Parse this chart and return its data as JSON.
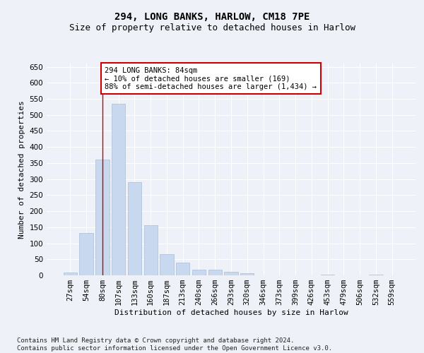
{
  "title": "294, LONG BANKS, HARLOW, CM18 7PE",
  "subtitle": "Size of property relative to detached houses in Harlow",
  "xlabel": "Distribution of detached houses by size in Harlow",
  "ylabel": "Number of detached properties",
  "categories": [
    "27sqm",
    "54sqm",
    "80sqm",
    "107sqm",
    "133sqm",
    "160sqm",
    "187sqm",
    "213sqm",
    "240sqm",
    "266sqm",
    "293sqm",
    "320sqm",
    "346sqm",
    "373sqm",
    "399sqm",
    "426sqm",
    "453sqm",
    "479sqm",
    "506sqm",
    "532sqm",
    "559sqm"
  ],
  "values": [
    8,
    133,
    360,
    535,
    290,
    157,
    65,
    40,
    18,
    18,
    12,
    7,
    0,
    0,
    0,
    0,
    3,
    0,
    0,
    2,
    0
  ],
  "bar_color": "#c8d8ee",
  "bar_edge_color": "#a8bcd8",
  "vline_x_index": 2,
  "vline_color": "#cc0000",
  "annotation_text": "294 LONG BANKS: 84sqm\n← 10% of detached houses are smaller (169)\n88% of semi-detached houses are larger (1,434) →",
  "annotation_box_facecolor": "#ffffff",
  "annotation_box_edgecolor": "#cc0000",
  "ylim": [
    0,
    660
  ],
  "yticks": [
    0,
    50,
    100,
    150,
    200,
    250,
    300,
    350,
    400,
    450,
    500,
    550,
    600,
    650
  ],
  "background_color": "#eef2f8",
  "grid_color": "#ffffff",
  "title_fontsize": 10,
  "subtitle_fontsize": 9,
  "axis_label_fontsize": 8,
  "tick_fontsize": 7.5,
  "annotation_fontsize": 7.5,
  "footnote_fontsize": 6.5,
  "footnote": "Contains HM Land Registry data © Crown copyright and database right 2024.\nContains public sector information licensed under the Open Government Licence v3.0."
}
